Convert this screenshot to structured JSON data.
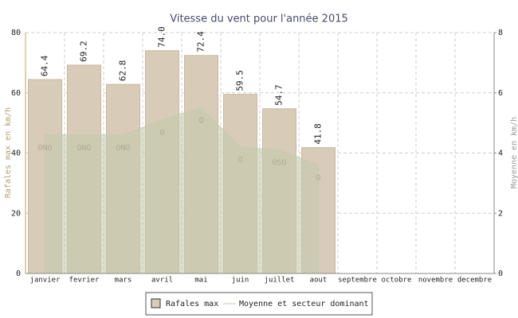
{
  "chart_data": {
    "type": "bar",
    "title": "Vitesse du vent pour l'année 2015",
    "categories": [
      "janvier",
      "fevrier",
      "mars",
      "avril",
      "mai",
      "juin",
      "juillet",
      "aout",
      "septembre",
      "octobre",
      "novembre",
      "decembre"
    ],
    "ylabel": "Rafales max en km/h",
    "y2label": "Moyenne en km/h",
    "ylim": [
      0,
      80
    ],
    "yticks": [
      0,
      20,
      40,
      60,
      80
    ],
    "y2lim": [
      0,
      8
    ],
    "y2ticks": [
      0,
      2,
      4,
      6,
      8
    ],
    "grid": true,
    "series": [
      {
        "name": "Rafales max",
        "color": "#d8cbb8",
        "values": [
          64.4,
          69.2,
          62.8,
          74.0,
          72.4,
          59.5,
          54.7,
          41.8,
          null,
          null,
          null,
          null
        ],
        "value_labels": [
          "64.4",
          "69.2",
          "62.8",
          "74.0",
          "72.4",
          "59.5",
          "54.7",
          "41.8",
          null,
          null,
          null,
          null
        ]
      },
      {
        "name": "Moyenne et secteur dominant",
        "color": "#c5cbad",
        "axis": "y2",
        "values": [
          4.6,
          4.6,
          4.6,
          5.1,
          5.5,
          4.2,
          4.1,
          3.6,
          null,
          null,
          null,
          null
        ],
        "directions": [
          "ONO",
          "ONO",
          "ONO",
          "O",
          "O",
          "O",
          "OSO",
          "O",
          null,
          null,
          null,
          null
        ]
      }
    ]
  }
}
